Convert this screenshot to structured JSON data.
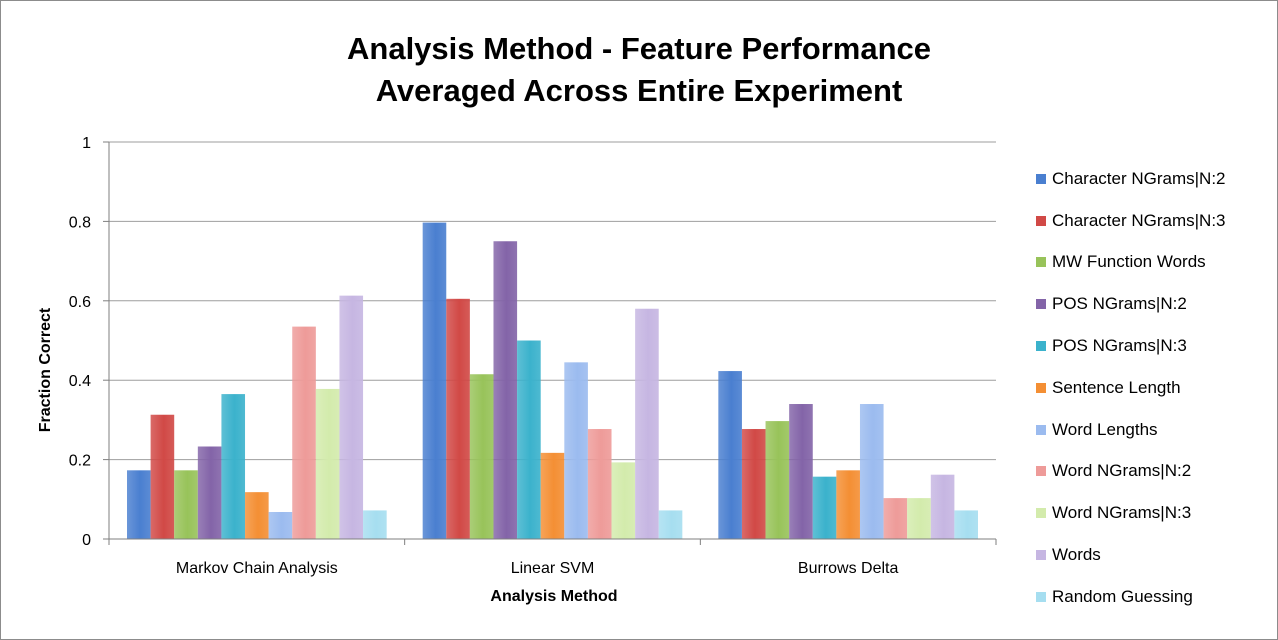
{
  "chart_data": {
    "type": "bar",
    "title": [
      "Analysis Method - Feature Performance",
      "Averaged Across Entire Experiment"
    ],
    "xlabel": "Analysis Method",
    "ylabel": "Fraction Correct",
    "ylim": [
      0,
      1
    ],
    "yticks": [
      "0",
      "0.2",
      "0.4",
      "0.6",
      "0.8",
      "1"
    ],
    "grid": true,
    "legend_position": "right",
    "categories": [
      "Markov Chain Analysis",
      "Linear SVM",
      "Burrows Delta"
    ],
    "series": [
      {
        "name": "Character NGrams|N:2",
        "color": "#4a7fd0",
        "values": [
          0.173,
          0.797,
          0.423
        ]
      },
      {
        "name": "Character NGrams|N:3",
        "color": "#d14946",
        "values": [
          0.313,
          0.605,
          0.277
        ]
      },
      {
        "name": "MW Function Words",
        "color": "#98c35a",
        "values": [
          0.173,
          0.415,
          0.297
        ]
      },
      {
        "name": "POS NGrams|N:2",
        "color": "#8364a8",
        "values": [
          0.233,
          0.75,
          0.34
        ]
      },
      {
        "name": "POS NGrams|N:3",
        "color": "#3bb2cc",
        "values": [
          0.365,
          0.5,
          0.157
        ]
      },
      {
        "name": "Sentence Length",
        "color": "#f48f34",
        "values": [
          0.118,
          0.217,
          0.173
        ]
      },
      {
        "name": "Word Lengths",
        "color": "#9bbbef",
        "values": [
          0.068,
          0.445,
          0.34
        ]
      },
      {
        "name": "Word NGrams|N:2",
        "color": "#ee9b99",
        "values": [
          0.535,
          0.277,
          0.103
        ]
      },
      {
        "name": "Word NGrams|N:3",
        "color": "#d3ebac",
        "values": [
          0.378,
          0.193,
          0.103
        ]
      },
      {
        "name": "Words",
        "color": "#c6b6e2",
        "values": [
          0.613,
          0.58,
          0.162
        ]
      },
      {
        "name": "Random Guessing",
        "color": "#a6def0",
        "values": [
          0.072,
          0.072,
          0.072
        ]
      }
    ]
  }
}
